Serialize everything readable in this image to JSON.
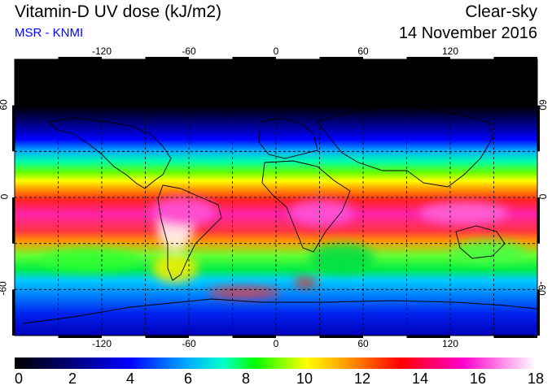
{
  "header": {
    "title": "Vitamin-D UV dose (kJ/m2)",
    "subtitle": "MSR - KNMI",
    "condition": "Clear-sky",
    "date": "14 November 2016"
  },
  "map": {
    "projection": "equirectangular",
    "lon_range": [
      -180,
      180
    ],
    "lat_range": [
      -90,
      90
    ],
    "lon_ticks": [
      "-120",
      "-60",
      "0",
      "60",
      "120"
    ],
    "lat_ticks_left": [
      "60",
      "0",
      "-60"
    ],
    "lat_ticks_right": [
      "60",
      "0",
      "-60"
    ],
    "gridlines": "dashed every 30 degrees",
    "field": "vitamin-D UV dose, maximum near 15-20 S, low at high northern latitudes"
  },
  "colorbar": {
    "min": 0,
    "max": 18,
    "tick_labels": [
      "0",
      "2",
      "4",
      "6",
      "8",
      "10",
      "12",
      "14",
      "16",
      "18"
    ],
    "colors": [
      "#000000",
      "#00007a",
      "#0000ff",
      "#00aaff",
      "#00ffcc",
      "#00ff00",
      "#ffff00",
      "#ff8800",
      "#ff0000",
      "#ff00cc",
      "#ffffff"
    ]
  }
}
